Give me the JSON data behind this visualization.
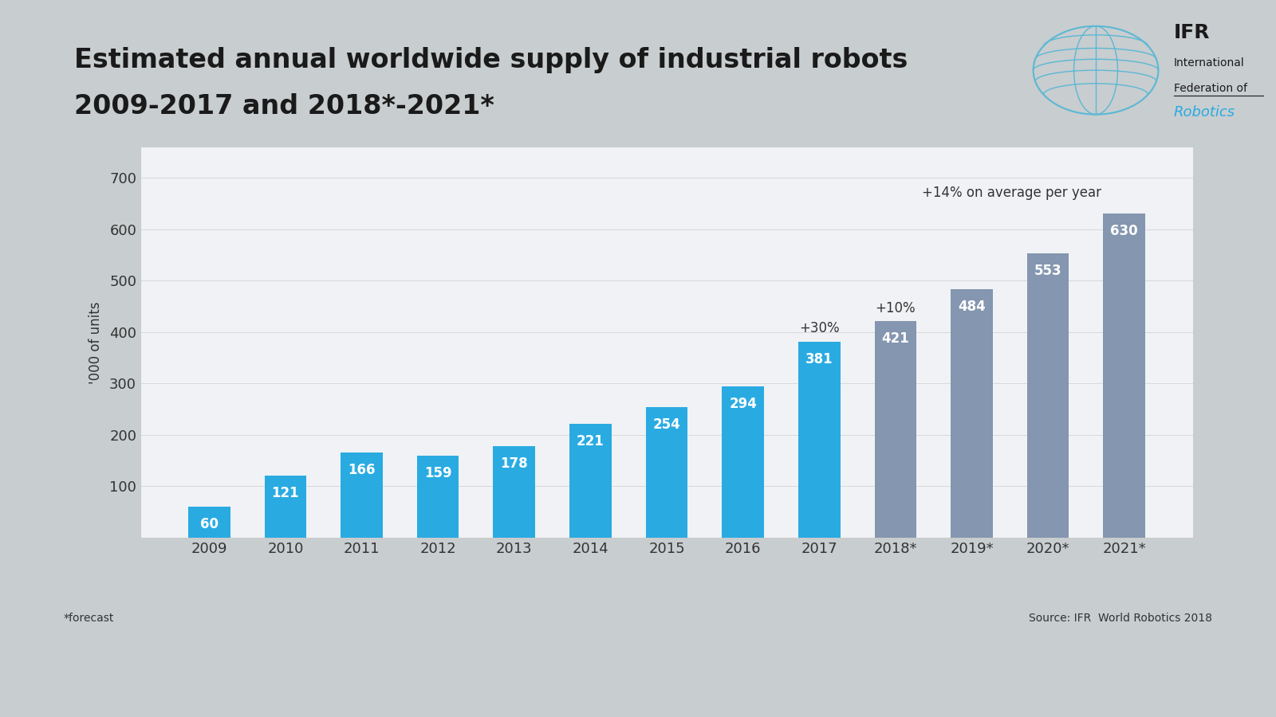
{
  "categories": [
    "2009",
    "2010",
    "2011",
    "2012",
    "2013",
    "2014",
    "2015",
    "2016",
    "2017",
    "2018*",
    "2019*",
    "2020*",
    "2021*"
  ],
  "values": [
    60,
    121,
    166,
    159,
    178,
    221,
    254,
    294,
    381,
    421,
    484,
    553,
    630
  ],
  "bar_color_actual": "#29ABE2",
  "bar_color_forecast": "#8496B0",
  "title_line1": "Estimated annual worldwide supply of industrial robots",
  "title_line2": "2009-2017 and 2018*-2021*",
  "ylabel": "'000 of units",
  "ylim": [
    0,
    760
  ],
  "yticks": [
    0,
    100,
    200,
    300,
    400,
    500,
    600,
    700
  ],
  "annotation_2017": "+30%",
  "annotation_2018": "+10%",
  "annotation_avg": "+14% on average per year",
  "source_text": "Source: IFR  World Robotics 2018",
  "forecast_text": "*forecast",
  "bg_outer": "#C8CDCF",
  "bg_chart_panel": "#F0F2F5",
  "title_color": "#1A1A1A",
  "axis_color": "#333333",
  "annotation_color": "#333333",
  "num_actual": 9,
  "num_forecast": 4,
  "title_fontsize": 24,
  "bar_value_fontsize": 12,
  "annotation_fontsize": 12,
  "tick_fontsize": 13,
  "ylabel_fontsize": 12
}
